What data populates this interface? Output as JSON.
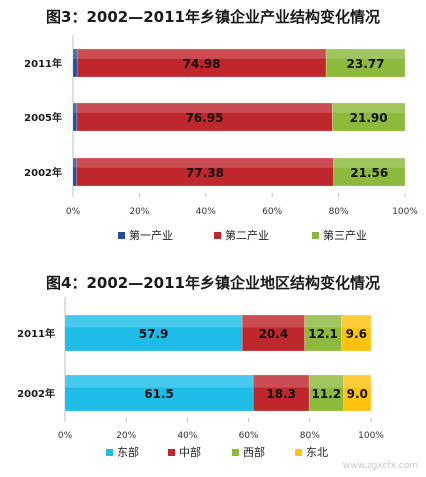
{
  "chart_data": [
    {
      "type": "bar",
      "orientation": "horizontal",
      "stacked": true,
      "title": "图3：2002—2011年乡镇企业产业结构变化情况",
      "categories": [
        "2011年",
        "2005年",
        "2002年"
      ],
      "series": [
        {
          "name": "第一产业",
          "color": "#1f4e9e",
          "values": [
            1.25,
            1.15,
            1.06
          ]
        },
        {
          "name": "第二产业",
          "color": "#c0272d",
          "values": [
            74.98,
            76.95,
            77.38
          ],
          "labels": [
            "74.98",
            "76.95",
            "77.38"
          ]
        },
        {
          "name": "第三产业",
          "color": "#8dba3c",
          "values": [
            23.77,
            21.9,
            21.56
          ],
          "labels": [
            "23.77",
            "21.90",
            "21.56"
          ]
        }
      ],
      "xlim": [
        0,
        100
      ],
      "xticks": [
        "0%",
        "20%",
        "40%",
        "60%",
        "80%",
        "100%"
      ],
      "legend_position": "bottom",
      "grid": false
    },
    {
      "type": "bar",
      "orientation": "horizontal",
      "stacked": true,
      "title": "图4：2002—2011年乡镇企业地区结构变化情况",
      "categories": [
        "2011年",
        "2002年"
      ],
      "series": [
        {
          "name": "东部",
          "color": "#1ebde8",
          "values": [
            57.9,
            61.5
          ],
          "labels": [
            "57.9",
            "61.5"
          ]
        },
        {
          "name": "中部",
          "color": "#c0272d",
          "values": [
            20.4,
            18.3
          ],
          "labels": [
            "20.4",
            "18.3"
          ]
        },
        {
          "name": "西部",
          "color": "#8dba3c",
          "values": [
            12.1,
            11.2
          ],
          "labels": [
            "12.1",
            "11.2"
          ]
        },
        {
          "name": "东北",
          "color": "#ffc20e",
          "values": [
            9.6,
            9.0
          ],
          "labels": [
            "9.6",
            "9.0"
          ]
        }
      ],
      "xlim": [
        0,
        100
      ],
      "xticks": [
        "0%",
        "20%",
        "40%",
        "60%",
        "80%",
        "100%"
      ],
      "legend_position": "bottom",
      "grid": false
    }
  ],
  "watermark": "www.zgxcfx.com"
}
